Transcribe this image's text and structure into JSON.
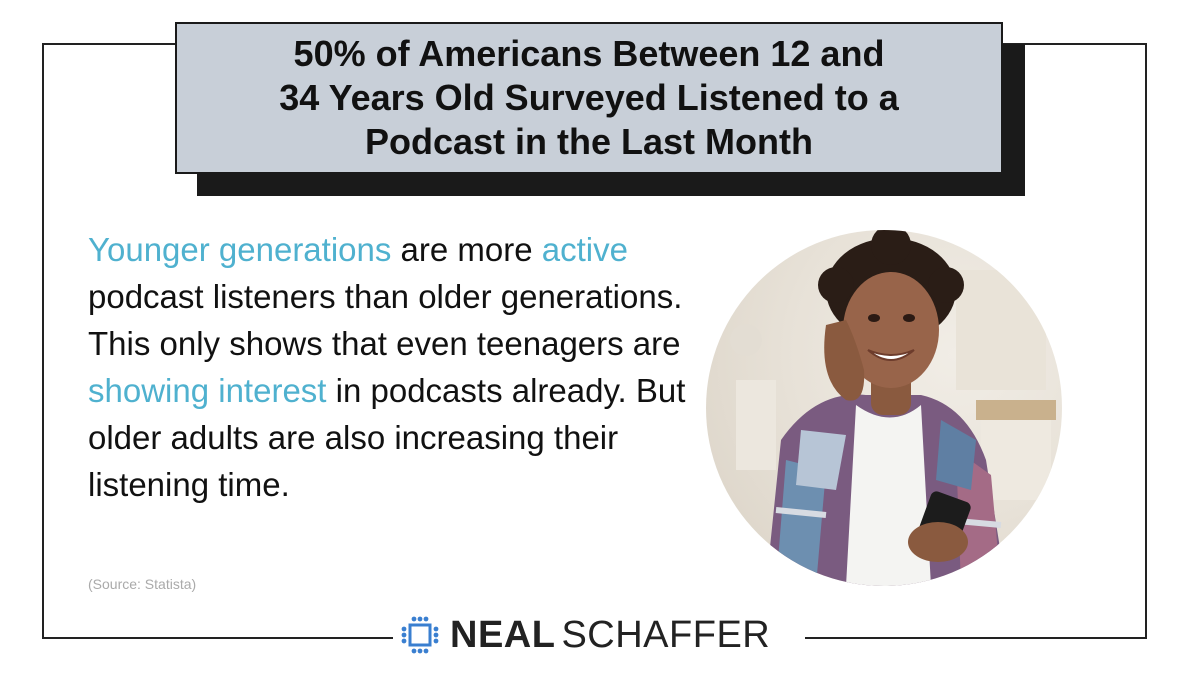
{
  "title": {
    "line1": "50% of Americans Between 12 and",
    "line2": "34 Years Old Surveyed Listened to a",
    "line3": "Podcast in the Last Month"
  },
  "body": {
    "p1": "Younger generations",
    "p2": " are more ",
    "p3": "active",
    "p4": " podcast listeners than older generations. This only shows that even teenagers are ",
    "p5": "showing interest",
    "p6": " in podcasts already. But older adults are also increasing their listening time."
  },
  "source": "(Source: Statista)",
  "logo": {
    "first": "NEAL",
    "last": "SCHAFFER"
  },
  "colors": {
    "highlight": "#4fb1cf",
    "title_bg": "#c8cfd8",
    "logo_icon": "#3a7fd0"
  },
  "image": {
    "icon": "photo-teen-with-headphones-and-phone"
  }
}
